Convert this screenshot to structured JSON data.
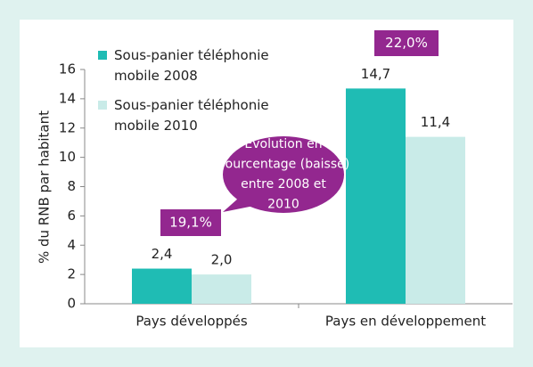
{
  "chart_data": {
    "type": "bar",
    "y_axis_label": "% du RNB par habitant",
    "categories": [
      "Pays développés",
      "Pays en développement"
    ],
    "series": [
      {
        "name": "Sous-panier téléphonie mobile 2008",
        "color": "#1fbcb4",
        "values": [
          2.4,
          14.7
        ],
        "value_labels": [
          "2,4",
          "14,7"
        ]
      },
      {
        "name": "Sous-panier téléphonie mobile 2010",
        "color": "#c9ebe8",
        "values": [
          2.0,
          11.4
        ],
        "value_labels": [
          "2,0",
          "11,4"
        ]
      }
    ],
    "ylim": [
      0,
      16
    ],
    "yticks": [
      0,
      2,
      4,
      6,
      8,
      10,
      12,
      14,
      16
    ],
    "legend": "top-left",
    "annotations": [
      "19,1%",
      "22,0%"
    ],
    "callout": [
      "Evolution en",
      "pourcentage (baisse)",
      "entre 2008 et",
      "2010"
    ],
    "annotation_color": "#93278f"
  }
}
